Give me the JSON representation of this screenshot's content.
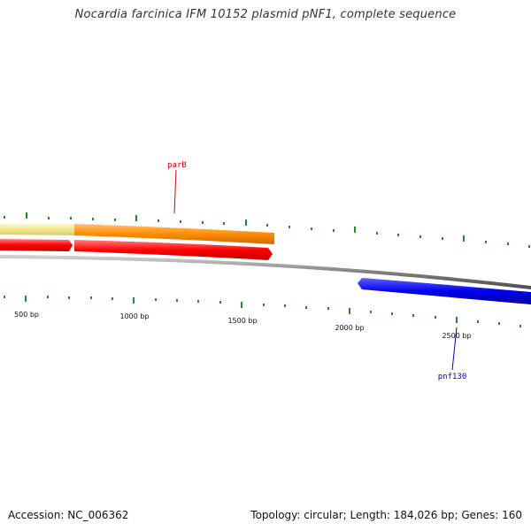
{
  "title": "Nocardia farcinica IFM 10152 plasmid pNF1, complete sequence",
  "footer": {
    "accession": "Accession: NC_006362",
    "summary": "Topology: circular; Length: 184,026 bp; Genes: 160"
  },
  "axis": {
    "tick_labels": [
      "500 bp",
      "1000 bp",
      "1500 bp",
      "2000 bp",
      "2500 bp"
    ]
  },
  "genes": {
    "parB": {
      "label": "parB",
      "color": "#cc0000"
    },
    "pnf130": {
      "label": "pnf130",
      "color": "#0000aa"
    }
  },
  "colors": {
    "tick": "#228b22",
    "backbone": "#808080",
    "orange_feature": "#ff8c00",
    "pale_feature": "#f0e68c",
    "red_feature": "#ff0000",
    "blue_feature": "#0000ee"
  }
}
